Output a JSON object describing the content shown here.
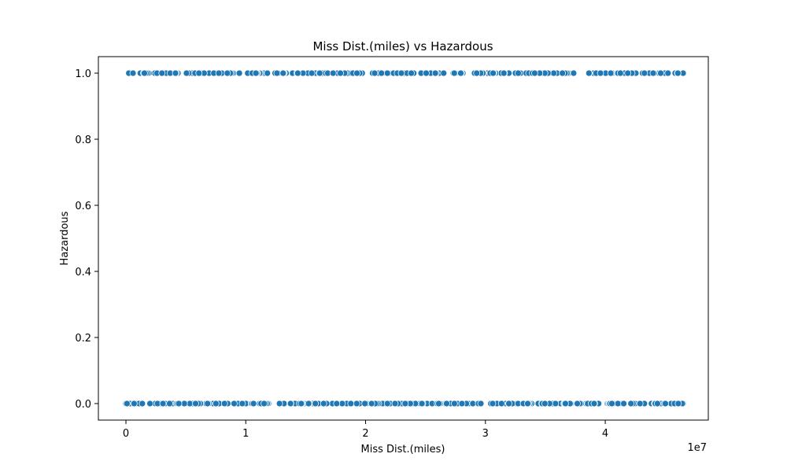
{
  "chart_data": {
    "type": "scatter",
    "title": "Miss Dist.(miles) vs Hazardous",
    "xlabel": "Miss Dist.(miles)",
    "ylabel": "Hazardous",
    "x_scale_label": "1e7",
    "xlim": [
      -2300000,
      48600000
    ],
    "ylim": [
      -0.05,
      1.05
    ],
    "x_ticks": [
      0,
      10000000,
      20000000,
      30000000,
      40000000
    ],
    "x_tick_labels": [
      "0",
      "1",
      "2",
      "3",
      "4"
    ],
    "y_ticks": [
      0.0,
      0.2,
      0.4,
      0.6,
      0.8,
      1.0
    ],
    "y_tick_labels": [
      "0.0",
      "0.2",
      "0.4",
      "0.6",
      "0.8",
      "1.0"
    ],
    "grid": false,
    "legend": "none",
    "marker_color": "#1f77b4",
    "marker_edge_color": "#ffffff",
    "series": [
      {
        "label_value": 1,
        "x_range": [
          200000,
          46500000
        ],
        "approx_point_count": 260
      },
      {
        "label_value": 0,
        "x_range": [
          0,
          46500000
        ],
        "approx_point_count": 320
      }
    ]
  }
}
